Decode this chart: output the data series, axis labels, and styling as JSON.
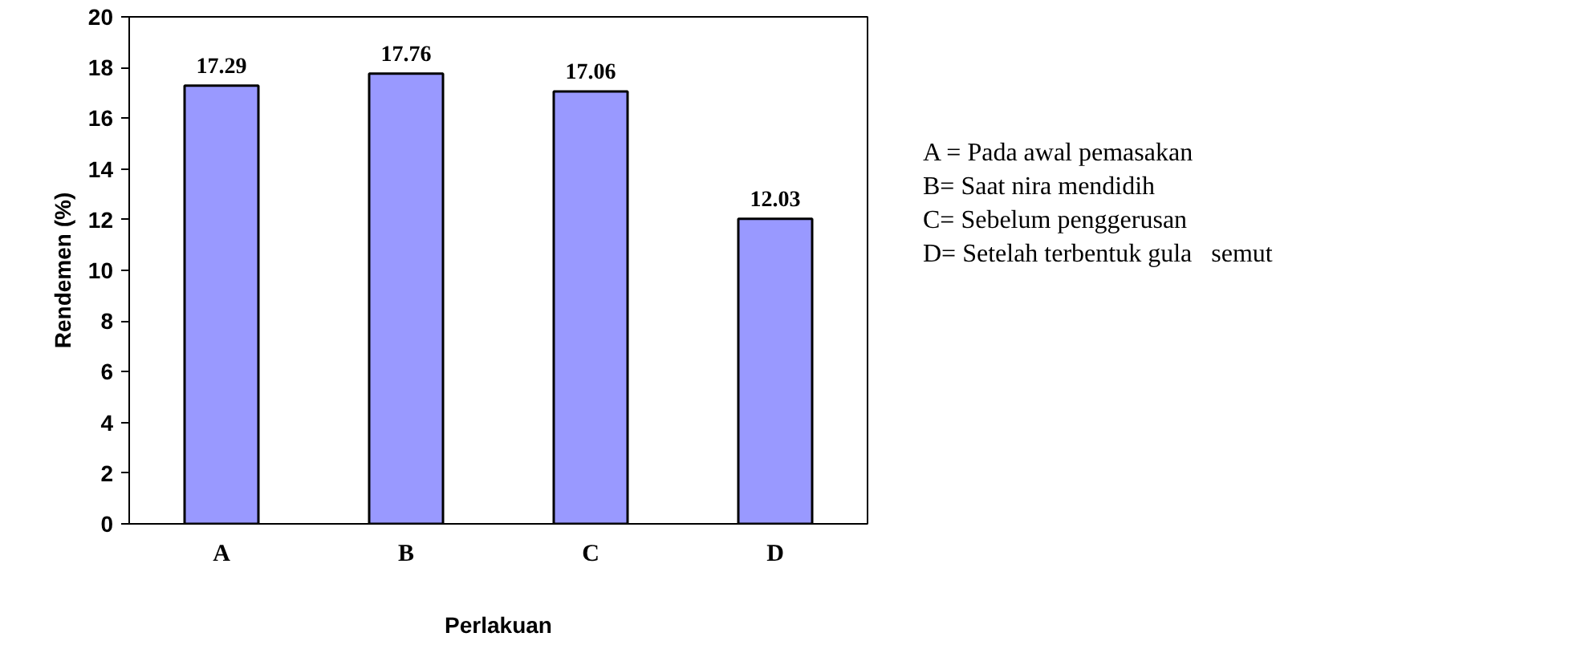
{
  "chart_data": {
    "type": "bar",
    "xlabel": "Perlakuan",
    "ylabel": "Rendemen (%)",
    "categories": [
      "A",
      "B",
      "C",
      "D"
    ],
    "values": [
      17.29,
      17.76,
      17.06,
      12.03
    ],
    "color": "#9999ff",
    "ylim": [
      0,
      20
    ],
    "yticks": [
      0,
      2,
      4,
      6,
      8,
      10,
      12,
      14,
      16,
      18,
      20
    ],
    "grid": false,
    "data_labels": true,
    "annotations": [
      "A = Pada awal pemasakan",
      "B= Saat nira mendidih",
      "C= Sebelum penggerusan",
      "D= Setelah terbentuk gula   semut"
    ]
  }
}
